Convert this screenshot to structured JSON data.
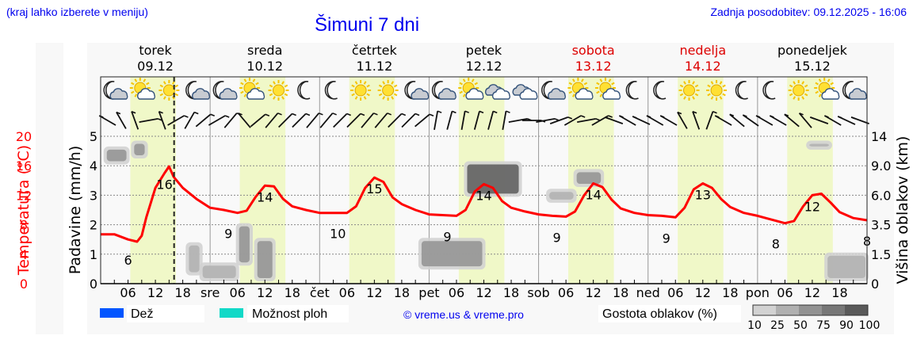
{
  "header": {
    "hint": "(kraj lahko izberete v meniju)",
    "title": "Šimuni 7 dni",
    "last_update": "Zadnja posodobitev: 09.12.2025 - 16:06"
  },
  "days": [
    {
      "name": "torek",
      "date": "09.12",
      "weekend": false,
      "abbr": ""
    },
    {
      "name": "sreda",
      "date": "10.12",
      "weekend": false,
      "abbr": "sre"
    },
    {
      "name": "četrtek",
      "date": "11.12",
      "weekend": false,
      "abbr": "čet"
    },
    {
      "name": "petek",
      "date": "12.12",
      "weekend": false,
      "abbr": "pet"
    },
    {
      "name": "sobota",
      "date": "13.12",
      "weekend": true,
      "abbr": "sob"
    },
    {
      "name": "nedelja",
      "date": "14.12",
      "weekend": true,
      "abbr": "ned"
    },
    {
      "name": "ponedeljek",
      "date": "15.12",
      "weekend": false,
      "abbr": "pon"
    }
  ],
  "axes": {
    "temperature_label": "Temperatura (°C)",
    "temperature_ticks": [
      "0",
      "4",
      "8",
      "12",
      "16",
      "20"
    ],
    "precip_label": "Padavine (mm/h)",
    "precip_ticks": [
      "0",
      "1",
      "2",
      "3",
      "4",
      "5"
    ],
    "cloud_height_label": "Višina oblakov (km)",
    "cloud_height_ticks": [
      "0",
      "1.5",
      "3.5",
      "6.0",
      "9.0",
      "14"
    ],
    "hour_ticks": [
      "06",
      "12",
      "18"
    ]
  },
  "legend": {
    "rain": "Dež",
    "storm": "Možnost ploh",
    "copyright": "© vreme.us & vreme.pro",
    "cloud_density": "Gostota oblakov (%)",
    "cloud_density_ticks": [
      "10",
      "25",
      "50",
      "75",
      "90",
      "100"
    ]
  },
  "colors": {
    "temperature": "#ff0000",
    "rain": "#0055ff",
    "storm": "#11d9c7",
    "daylight": "#f0f8c8",
    "weekend_text": "#dd0000",
    "link": "#0000ee"
  },
  "icons": [
    "moon-cloud",
    "sun-cloud",
    "sun",
    "moon-cloud",
    "moon-cloud",
    "sun-cloud",
    "sun",
    "moon",
    "moon",
    "sun",
    "sun",
    "moon-cloud",
    "moon-cloud",
    "sun-cloud",
    "cloud",
    "cloud",
    "moon-cloud",
    "sun-cloud",
    "sun-cloud",
    "moon",
    "moon",
    "sun",
    "sun",
    "moon",
    "moon",
    "sun",
    "sun-cloud",
    "moon-cloud"
  ],
  "chart_data": {
    "type": "line",
    "title": "Šimuni 7 dni",
    "xlabel": "",
    "ylabel": "Temperatura (°C)",
    "ylim": [
      0,
      20
    ],
    "x_range_hours": [
      0,
      168
    ],
    "current_time_hour": 16.1,
    "series": [
      {
        "name": "Temperatura",
        "x_hours": [
          0,
          3,
          6,
          8,
          9,
          10,
          12,
          14,
          15,
          16,
          18,
          21,
          24,
          27,
          30,
          32,
          34,
          36,
          38,
          40,
          42,
          45,
          48,
          51,
          54,
          56,
          58,
          60,
          62,
          64,
          66,
          69,
          72,
          75,
          78,
          80,
          82,
          84,
          86,
          88,
          90,
          93,
          96,
          99,
          102,
          104,
          106,
          108,
          110,
          112,
          114,
          117,
          120,
          123,
          126,
          128,
          130,
          132,
          134,
          136,
          138,
          141,
          144,
          147,
          150,
          152,
          154,
          156,
          158,
          160,
          162,
          165,
          168
        ],
        "values": [
          6.7,
          6.7,
          6.0,
          5.7,
          6.5,
          9.0,
          13.0,
          15.0,
          15.9,
          14.5,
          13.0,
          11.5,
          10.3,
          10.0,
          9.6,
          9.9,
          11.8,
          13.3,
          13.2,
          11.5,
          10.5,
          10.0,
          9.6,
          9.6,
          9.6,
          10.5,
          13.0,
          14.4,
          13.8,
          11.7,
          10.8,
          10.0,
          9.4,
          9.3,
          9.2,
          10.0,
          12.5,
          13.5,
          13.0,
          11.2,
          10.3,
          9.8,
          9.4,
          9.2,
          9.1,
          9.8,
          12.0,
          13.6,
          13.1,
          11.4,
          10.2,
          9.6,
          9.3,
          9.2,
          9.0,
          10.3,
          12.8,
          13.6,
          13.0,
          11.5,
          10.4,
          9.6,
          9.2,
          8.7,
          8.2,
          8.5,
          10.5,
          12.0,
          12.2,
          11.0,
          9.7,
          8.9,
          8.6
        ],
        "labels": [
          {
            "hour": 6,
            "text": "6"
          },
          {
            "hour": 14,
            "text": "16"
          },
          {
            "hour": 28,
            "text": "9"
          },
          {
            "hour": 36,
            "text": "14"
          },
          {
            "hour": 52,
            "text": "10"
          },
          {
            "hour": 60,
            "text": "15"
          },
          {
            "hour": 76,
            "text": "9"
          },
          {
            "hour": 84,
            "text": "14"
          },
          {
            "hour": 100,
            "text": "9"
          },
          {
            "hour": 108,
            "text": "14"
          },
          {
            "hour": 124,
            "text": "9"
          },
          {
            "hour": 132,
            "text": "13"
          },
          {
            "hour": 148,
            "text": "8"
          },
          {
            "hour": 156,
            "text": "12"
          },
          {
            "hour": 168,
            "text": "8"
          }
        ]
      },
      {
        "name": "Padavine (mm/h)",
        "values": []
      }
    ],
    "cloud_layers": [
      {
        "hour_from": 1,
        "hour_to": 6,
        "km_low": 9.5,
        "km_high": 12,
        "density": 60
      },
      {
        "hour_from": 7,
        "hour_to": 10,
        "km_low": 10.5,
        "km_high": 13,
        "density": 50
      },
      {
        "hour_from": 19,
        "hour_to": 22,
        "km_low": 0.5,
        "km_high": 2.2,
        "density": 40
      },
      {
        "hour_from": 22,
        "hour_to": 30,
        "km_low": 0.2,
        "km_high": 1.0,
        "density": 45
      },
      {
        "hour_from": 30,
        "hour_to": 33,
        "km_low": 1.0,
        "km_high": 3.5,
        "density": 65
      },
      {
        "hour_from": 34,
        "hour_to": 38,
        "km_low": 0.2,
        "km_high": 2.5,
        "density": 50
      },
      {
        "hour_from": 70,
        "hour_to": 84,
        "km_low": 0.8,
        "km_high": 2.5,
        "density": 55
      },
      {
        "hour_from": 80,
        "hour_to": 92,
        "km_low": 6.0,
        "km_high": 9.5,
        "density": 90
      },
      {
        "hour_from": 98,
        "hour_to": 104,
        "km_low": 5.5,
        "km_high": 6.5,
        "density": 30
      },
      {
        "hour_from": 104,
        "hour_to": 110,
        "km_low": 7.0,
        "km_high": 8.5,
        "density": 50
      },
      {
        "hour_from": 155,
        "hour_to": 160,
        "km_low": 12.0,
        "km_high": 13.0,
        "density": 30
      },
      {
        "hour_from": 159,
        "hour_to": 168,
        "km_low": 0.2,
        "km_high": 1.5,
        "density": 40
      }
    ],
    "legend_position": "bottom"
  }
}
